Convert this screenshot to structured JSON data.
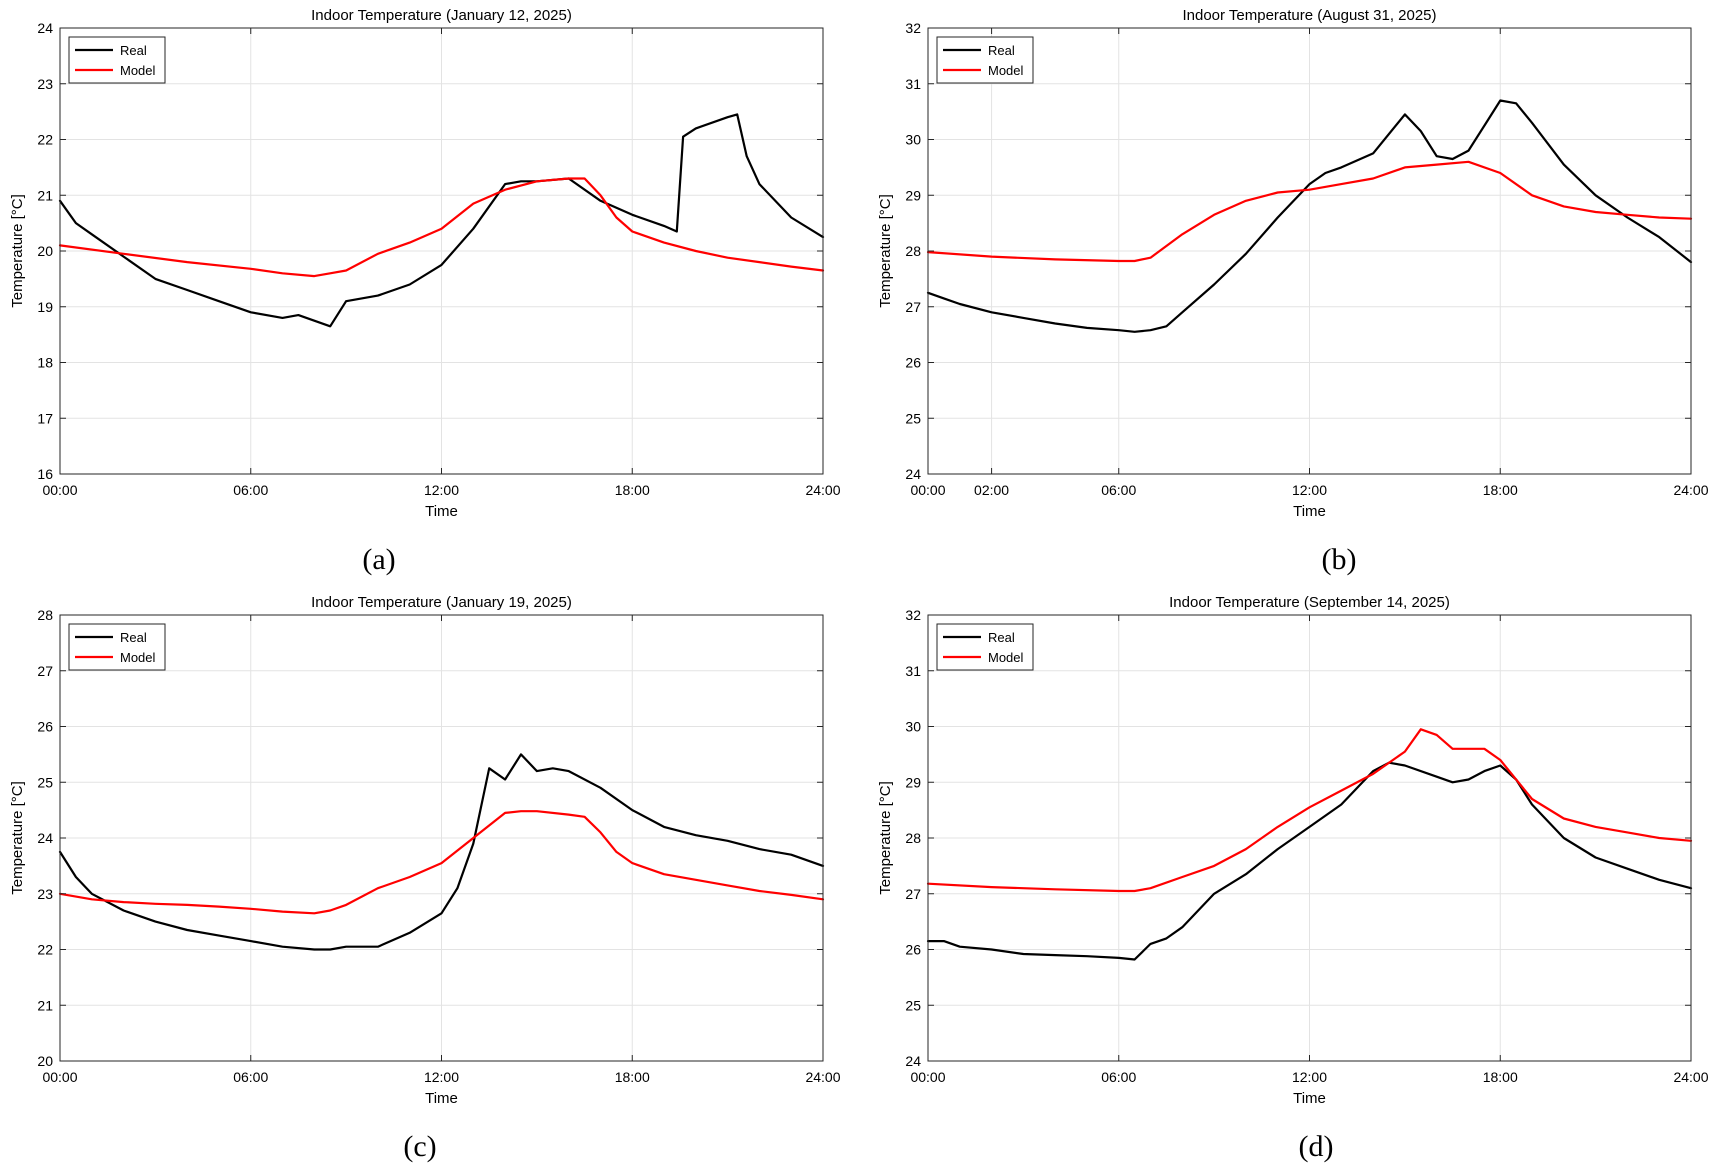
{
  "colors": {
    "real": "#000000",
    "model": "#ff0000",
    "grid": "#e3e3e3",
    "axis": "#262626"
  },
  "icons": [
    "legend-line-swatch"
  ],
  "chart_data": [
    {
      "type": "line",
      "panel_label": "(a)",
      "title": "Indoor Temperature (January 12, 2025)",
      "xlabel": "Time",
      "ylabel": "Temperature [°C]",
      "xlim": [
        0,
        24
      ],
      "ylim": [
        16,
        24
      ],
      "xticks": [
        0,
        6,
        12,
        18,
        24
      ],
      "xtick_labels": [
        "00:00",
        "06:00",
        "12:00",
        "18:00",
        "24:00"
      ],
      "yticks": [
        16,
        17,
        18,
        19,
        20,
        21,
        22,
        23,
        24
      ],
      "ytick_labels": [
        "16",
        "17",
        "18",
        "19",
        "20",
        "21",
        "22",
        "23",
        "24"
      ],
      "grid": true,
      "legend_position": "top-left",
      "series": [
        {
          "name": "Real",
          "color": "#000000",
          "x": [
            0,
            0.5,
            1,
            2,
            3,
            4,
            5,
            6,
            7,
            7.5,
            8,
            8.5,
            9,
            10,
            11,
            12,
            13,
            14,
            14.5,
            15,
            16,
            17,
            18,
            19,
            19.4,
            19.6,
            20,
            21,
            21.3,
            21.6,
            22,
            23,
            24
          ],
          "y": [
            20.9,
            20.5,
            20.3,
            19.9,
            19.5,
            19.3,
            19.1,
            18.9,
            18.8,
            18.85,
            18.75,
            18.65,
            19.1,
            19.2,
            19.4,
            19.75,
            20.4,
            21.2,
            21.25,
            21.25,
            21.3,
            20.9,
            20.65,
            20.45,
            20.35,
            22.05,
            22.2,
            22.4,
            22.45,
            21.7,
            21.2,
            20.6,
            20.25
          ]
        },
        {
          "name": "Model",
          "color": "#ff0000",
          "x": [
            0,
            2,
            4,
            6,
            7,
            8,
            8.5,
            9,
            10,
            11,
            12,
            13,
            14,
            15,
            16,
            16.5,
            17,
            17.5,
            18,
            19,
            20,
            21,
            22,
            23,
            24
          ],
          "y": [
            20.1,
            19.95,
            19.8,
            19.68,
            19.6,
            19.55,
            19.6,
            19.65,
            19.95,
            20.15,
            20.4,
            20.85,
            21.1,
            21.25,
            21.3,
            21.3,
            21.0,
            20.6,
            20.35,
            20.15,
            20.0,
            19.88,
            19.8,
            19.72,
            19.65
          ]
        }
      ]
    },
    {
      "type": "line",
      "panel_label": "(b)",
      "title": "Indoor Temperature (August 31, 2025)",
      "xlabel": "Time",
      "ylabel": "Temperature [°C]",
      "xlim": [
        0,
        24
      ],
      "ylim": [
        24,
        32
      ],
      "xticks": [
        0,
        2,
        6,
        12,
        18,
        24
      ],
      "xtick_labels": [
        "00:00",
        "02:00",
        "06:00",
        "12:00",
        "18:00",
        "24:00"
      ],
      "yticks": [
        24,
        25,
        26,
        27,
        28,
        29,
        30,
        31,
        32
      ],
      "ytick_labels": [
        "24",
        "25",
        "26",
        "27",
        "28",
        "29",
        "30",
        "31",
        "32"
      ],
      "grid": true,
      "legend_position": "top-left",
      "series": [
        {
          "name": "Real",
          "color": "#000000",
          "x": [
            0,
            0.5,
            1,
            2,
            3,
            4,
            5,
            6,
            6.5,
            7,
            7.5,
            8,
            9,
            10,
            11,
            12,
            12.5,
            13,
            14,
            15,
            15.5,
            16,
            16.5,
            17,
            17.5,
            18,
            18.5,
            19,
            20,
            21,
            22,
            23,
            24
          ],
          "y": [
            27.25,
            27.15,
            27.05,
            26.9,
            26.8,
            26.7,
            26.62,
            26.58,
            26.55,
            26.58,
            26.65,
            26.9,
            27.4,
            27.95,
            28.6,
            29.2,
            29.4,
            29.5,
            29.75,
            30.45,
            30.15,
            29.7,
            29.65,
            29.8,
            30.25,
            30.7,
            30.65,
            30.3,
            29.55,
            29.0,
            28.6,
            28.25,
            27.8
          ]
        },
        {
          "name": "Model",
          "color": "#ff0000",
          "x": [
            0,
            2,
            4,
            6,
            6.5,
            7,
            8,
            9,
            10,
            11,
            12,
            13,
            14,
            15,
            16,
            17,
            18,
            19,
            20,
            21,
            22,
            23,
            24
          ],
          "y": [
            27.98,
            27.9,
            27.85,
            27.82,
            27.82,
            27.88,
            28.3,
            28.65,
            28.9,
            29.05,
            29.1,
            29.2,
            29.3,
            29.5,
            29.55,
            29.6,
            29.4,
            29.0,
            28.8,
            28.7,
            28.65,
            28.6,
            28.58
          ]
        }
      ]
    },
    {
      "type": "line",
      "panel_label": "(c)",
      "title": "Indoor Temperature (January 19, 2025)",
      "xlabel": "Time",
      "ylabel": "Temperature [°C]",
      "xlim": [
        0,
        24
      ],
      "ylim": [
        20,
        28
      ],
      "xticks": [
        0,
        6,
        12,
        18,
        24
      ],
      "xtick_labels": [
        "00:00",
        "06:00",
        "12:00",
        "18:00",
        "24:00"
      ],
      "yticks": [
        20,
        21,
        22,
        23,
        24,
        25,
        26,
        27,
        28
      ],
      "ytick_labels": [
        "20",
        "21",
        "22",
        "23",
        "24",
        "25",
        "26",
        "27",
        "28"
      ],
      "grid": true,
      "legend_position": "top-left",
      "series": [
        {
          "name": "Real",
          "color": "#000000",
          "x": [
            0,
            0.5,
            1,
            2,
            3,
            4,
            5,
            6,
            7,
            8,
            8.5,
            9,
            10,
            11,
            12,
            12.5,
            13,
            13.5,
            14,
            14.5,
            15,
            15.5,
            16,
            17,
            18,
            19,
            20,
            21,
            22,
            23,
            24
          ],
          "y": [
            23.75,
            23.3,
            23.0,
            22.7,
            22.5,
            22.35,
            22.25,
            22.15,
            22.05,
            22.0,
            22.0,
            22.05,
            22.05,
            22.3,
            22.65,
            23.1,
            23.9,
            25.25,
            25.05,
            25.5,
            25.2,
            25.25,
            25.2,
            24.9,
            24.5,
            24.2,
            24.05,
            23.95,
            23.8,
            23.7,
            23.5
          ]
        },
        {
          "name": "Model",
          "color": "#ff0000",
          "x": [
            0,
            1,
            2,
            3,
            4,
            5,
            6,
            7,
            8,
            8.5,
            9,
            10,
            11,
            12,
            13,
            14,
            14.5,
            15,
            16,
            16.5,
            17,
            17.5,
            18,
            19,
            20,
            21,
            22,
            23,
            24
          ],
          "y": [
            23.0,
            22.9,
            22.85,
            22.82,
            22.8,
            22.77,
            22.73,
            22.68,
            22.65,
            22.7,
            22.8,
            23.1,
            23.3,
            23.55,
            24.0,
            24.45,
            24.48,
            24.48,
            24.42,
            24.38,
            24.1,
            23.75,
            23.55,
            23.35,
            23.25,
            23.15,
            23.05,
            22.98,
            22.9
          ]
        }
      ]
    },
    {
      "type": "line",
      "panel_label": "(d)",
      "title": "Indoor Temperature (September 14, 2025)",
      "xlabel": "Time",
      "ylabel": "Temperature [°C]",
      "xlim": [
        0,
        24
      ],
      "ylim": [
        24,
        32
      ],
      "xticks": [
        0,
        6,
        12,
        18,
        24
      ],
      "xtick_labels": [
        "00:00",
        "06:00",
        "12:00",
        "18:00",
        "24:00"
      ],
      "yticks": [
        24,
        25,
        26,
        27,
        28,
        29,
        30,
        31,
        32
      ],
      "ytick_labels": [
        "24",
        "25",
        "26",
        "27",
        "28",
        "29",
        "30",
        "31",
        "32"
      ],
      "grid": true,
      "legend_position": "top-left",
      "series": [
        {
          "name": "Real",
          "color": "#000000",
          "x": [
            0,
            0.5,
            1,
            2,
            3,
            4,
            5,
            6,
            6.5,
            7,
            7.5,
            8,
            9,
            10,
            11,
            12,
            13,
            14,
            14.5,
            15,
            16,
            16.5,
            17,
            17.5,
            18,
            18.5,
            19,
            20,
            21,
            22,
            23,
            24
          ],
          "y": [
            26.15,
            26.15,
            26.05,
            26.0,
            25.92,
            25.9,
            25.88,
            25.85,
            25.82,
            26.1,
            26.2,
            26.4,
            27.0,
            27.35,
            27.8,
            28.2,
            28.6,
            29.2,
            29.35,
            29.3,
            29.1,
            29.0,
            29.05,
            29.2,
            29.3,
            29.05,
            28.6,
            28.0,
            27.65,
            27.45,
            27.25,
            27.1
          ]
        },
        {
          "name": "Model",
          "color": "#ff0000",
          "x": [
            0,
            2,
            4,
            6,
            6.5,
            7,
            8,
            9,
            10,
            11,
            12,
            13,
            14,
            15,
            15.5,
            16,
            16.5,
            17,
            17.5,
            18,
            18.5,
            19,
            20,
            21,
            22,
            23,
            24
          ],
          "y": [
            27.18,
            27.12,
            27.08,
            27.05,
            27.05,
            27.1,
            27.3,
            27.5,
            27.8,
            28.2,
            28.55,
            28.85,
            29.15,
            29.55,
            29.95,
            29.85,
            29.6,
            29.6,
            29.6,
            29.4,
            29.05,
            28.7,
            28.35,
            28.2,
            28.1,
            28.0,
            27.95
          ]
        }
      ]
    }
  ]
}
